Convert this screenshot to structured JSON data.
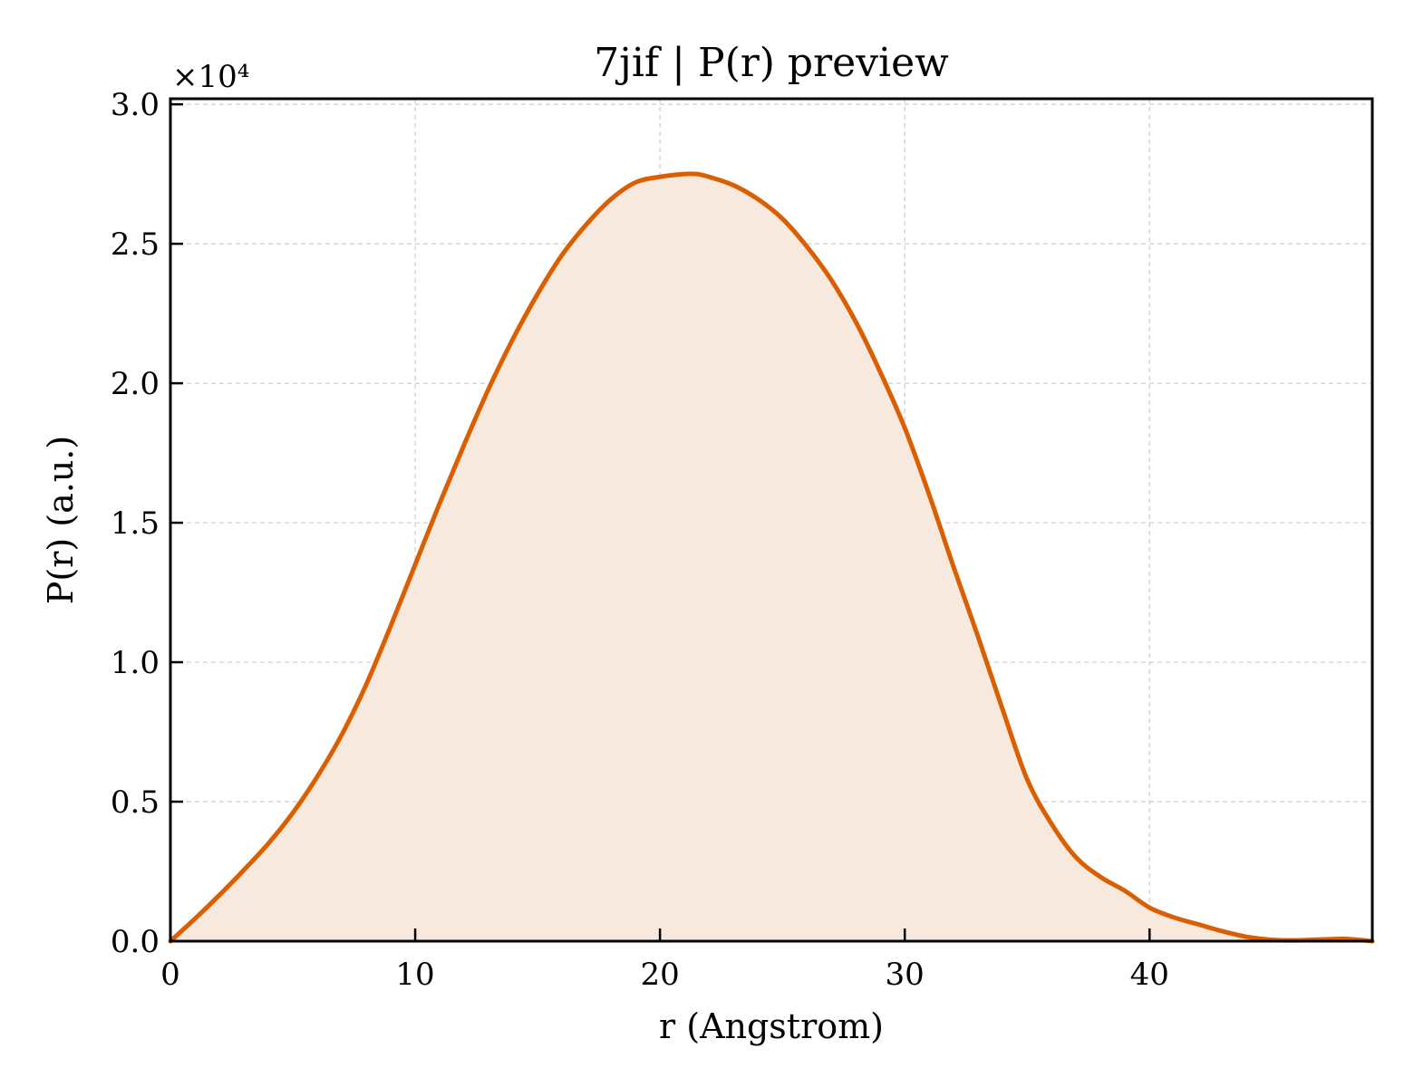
{
  "chart_data": {
    "type": "area",
    "title": "7jif | P(r) preview",
    "xlabel": "r (Angstrom)",
    "ylabel": "P(r) (a.u.)",
    "y_multiplier": "×10⁴",
    "xlim": [
      0,
      49.1
    ],
    "ylim": [
      0,
      30200
    ],
    "xticks": [
      0,
      10,
      20,
      30,
      40
    ],
    "xtick_labels": [
      "0",
      "10",
      "20",
      "30",
      "40"
    ],
    "yticks": [
      0,
      5000,
      10000,
      15000,
      20000,
      25000,
      30000
    ],
    "ytick_labels": [
      "0.0",
      "0.5",
      "1.0",
      "1.5",
      "2.0",
      "2.5",
      "3.0"
    ],
    "grid": true,
    "legend": "none",
    "line_color": "#d95f02",
    "fill_color": "#f8e9df",
    "series": [
      {
        "x": [
          0,
          1,
          2,
          3,
          4,
          5,
          6,
          7,
          8,
          9,
          10,
          11,
          12,
          13,
          14,
          15,
          16,
          17,
          18,
          19,
          20,
          21,
          21.5,
          22,
          23,
          24,
          25,
          26,
          27,
          28,
          29,
          30,
          31,
          32,
          33,
          34,
          35,
          36,
          37,
          38,
          39,
          40,
          41,
          42,
          43,
          44,
          45,
          46,
          47,
          48,
          49.1
        ],
        "y": [
          0,
          800,
          1650,
          2550,
          3500,
          4600,
          5900,
          7400,
          9200,
          11300,
          13500,
          15700,
          17800,
          19800,
          21600,
          23200,
          24600,
          25700,
          26600,
          27200,
          27400,
          27500,
          27500,
          27400,
          27100,
          26600,
          25900,
          24900,
          23700,
          22200,
          20400,
          18400,
          16000,
          13400,
          10900,
          8300,
          5800,
          4200,
          3000,
          2300,
          1800,
          1200,
          850,
          600,
          350,
          150,
          50,
          30,
          60,
          80,
          0
        ]
      }
    ]
  }
}
